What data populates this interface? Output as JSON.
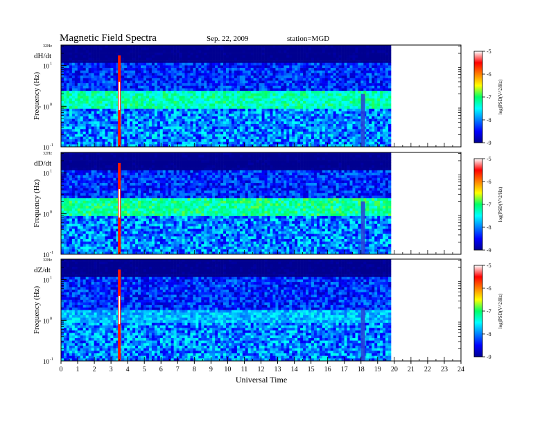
{
  "header": {
    "title": "Magnetic Field Spectra",
    "date": "Sep. 22, 2009",
    "station": "station=MGD"
  },
  "chart_data": {
    "type": "heatmap",
    "xlabel": "Universal Time",
    "ylabel": "Frequency (Hz)",
    "x_ticks": [
      "0",
      "1",
      "2",
      "3",
      "4",
      "5",
      "6",
      "7",
      "8",
      "9",
      "10",
      "11",
      "12",
      "13",
      "14",
      "15",
      "16",
      "17",
      "18",
      "19",
      "20",
      "21",
      "22",
      "23",
      "24"
    ],
    "xlim": [
      0,
      24
    ],
    "data_end_hour": 19.8,
    "y_top_label": "32Hz",
    "y_ticks": [
      {
        "base": "10",
        "exp": "1",
        "value": 10
      },
      {
        "base": "10",
        "exp": "0",
        "value": 1
      },
      {
        "base": "10",
        "exp": "-1",
        "value": 0.1
      }
    ],
    "ylim_hz": [
      0.1,
      32
    ],
    "y_scale": "log",
    "colorbar": {
      "label": "log(PSD(V^2/Hz)",
      "ticks": [
        "-5",
        "-6",
        "-7",
        "-8",
        "-9"
      ],
      "range": [
        -9,
        -5
      ],
      "colormap": "jet"
    },
    "panels": [
      {
        "component": "dH/dt",
        "background_band_hz": [
          0.9,
          2.5
        ],
        "band_level": -7.3
      },
      {
        "component": "dD/dt",
        "background_band_hz": [
          0.9,
          2.5
        ],
        "band_level": -7.2
      },
      {
        "component": "dZ/dt",
        "background_band_hz": [
          0.9,
          1.8
        ],
        "band_level": -7.8
      }
    ],
    "events": [
      {
        "name": "broadband impulse",
        "hour": 3.5,
        "level": -5.0
      },
      {
        "name": "data gap",
        "hour_range": [
          18.0,
          18.25
        ]
      }
    ]
  }
}
